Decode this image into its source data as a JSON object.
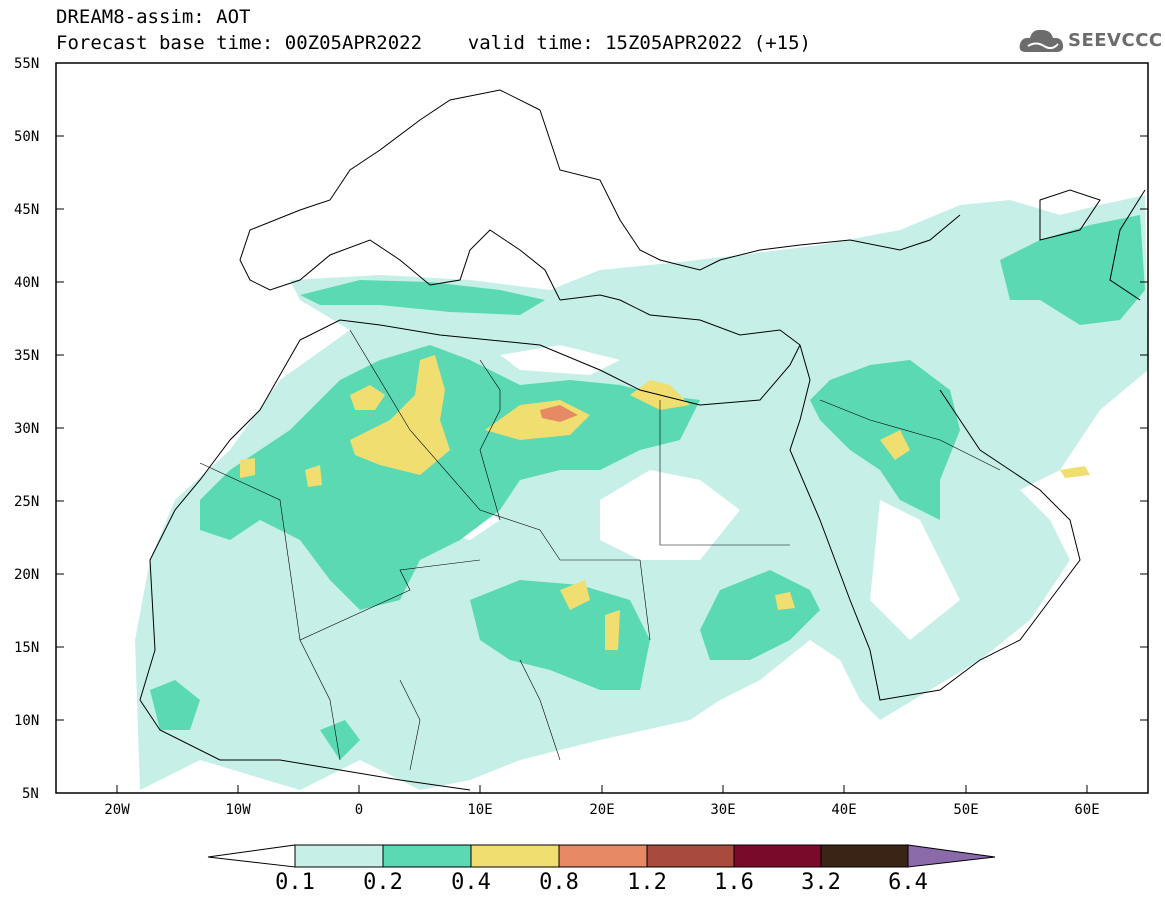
{
  "header": {
    "line1": "DREAM8-assim: AOT",
    "line2": "Forecast base time: 00Z05APR2022    valid time: 15Z05APR2022 (+15)"
  },
  "logo": {
    "text": "SEEVCCC",
    "icon": "cloud-icon"
  },
  "map": {
    "lon_range": [
      -25,
      65
    ],
    "lat_range": [
      5,
      55
    ],
    "lat_ticks": [
      "55N",
      "50N",
      "45N",
      "40N",
      "35N",
      "30N",
      "25N",
      "20N",
      "15N",
      "10N",
      "5N"
    ],
    "lon_ticks": [
      "20W",
      "10W",
      "0",
      "10E",
      "20E",
      "30E",
      "40E",
      "50E",
      "60E"
    ]
  },
  "colorbar": {
    "labels": [
      "0.1",
      "0.2",
      "0.4",
      "0.8",
      "1.2",
      "1.6",
      "3.2",
      "6.4"
    ],
    "colors": [
      "#ffffff",
      "#c6efe8",
      "#5ad9b2",
      "#f0df70",
      "#e58a64",
      "#a84a3c",
      "#7a0a2a",
      "#3a2416",
      "#8a6aa8"
    ]
  },
  "colors": {
    "level1": "#c6efe8",
    "level2": "#5ad9b2",
    "level3": "#f0df70",
    "level4": "#e58a64",
    "border": "#000000"
  }
}
